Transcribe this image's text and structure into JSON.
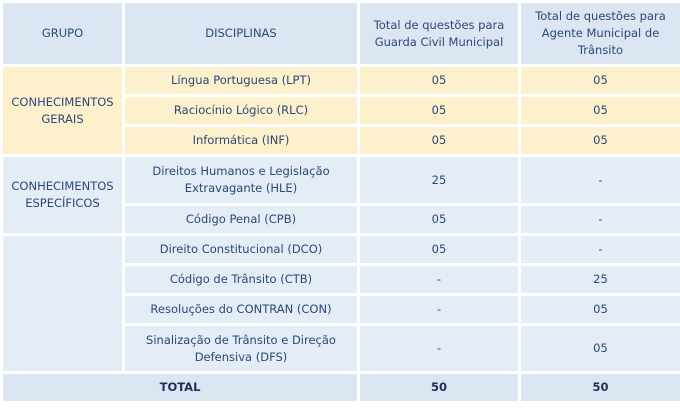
{
  "headers": [
    "GRUPO",
    "DISCIPLINAS",
    "Total de questões para Guarda Civil Municipal",
    "Total de questões para Agente Municipal de Trânsito"
  ],
  "groups": [
    {
      "name": "CONHECIMENTOS GERAIS",
      "rows": [
        {
          "disciplina": "Língua Portuguesa (LPT)",
          "guarda": "05",
          "agente": "05"
        },
        {
          "disciplina": "Raciocínio Lógico (RLC)",
          "guarda": "05",
          "agente": "05"
        },
        {
          "disciplina": "Informática (INF)",
          "guarda": "05",
          "agente": "05"
        }
      ]
    },
    {
      "name": "CONHECIMENTOS ESPECÍFICOS",
      "rows": [
        {
          "disciplina": "Direitos Humanos e Legislação Extravagante (HLE)",
          "guarda": "25",
          "agente": "-"
        },
        {
          "disciplina": "Código Penal (CPB)",
          "guarda": "05",
          "agente": "-"
        }
      ]
    },
    {
      "name": "",
      "rows": [
        {
          "disciplina": "Direito Constitucional (DCO)",
          "guarda": "05",
          "agente": "-"
        },
        {
          "disciplina": "Código de Trânsito (CTB)",
          "guarda": "-",
          "agente": "25"
        },
        {
          "disciplina": "Resoluções do CONTRAN (CON)",
          "guarda": "-",
          "agente": "05"
        },
        {
          "disciplina": "Sinalização de Trânsito e Direção Defensiva (DFS)",
          "guarda": "-",
          "agente": "05"
        }
      ]
    }
  ],
  "total": {
    "label": "TOTAL",
    "guarda": "50",
    "agente": "50"
  },
  "colors": {
    "header": "#dce6f2",
    "gerais": "#fdf0cc",
    "body": "#e4ecf6",
    "text": "#2b4878"
  }
}
